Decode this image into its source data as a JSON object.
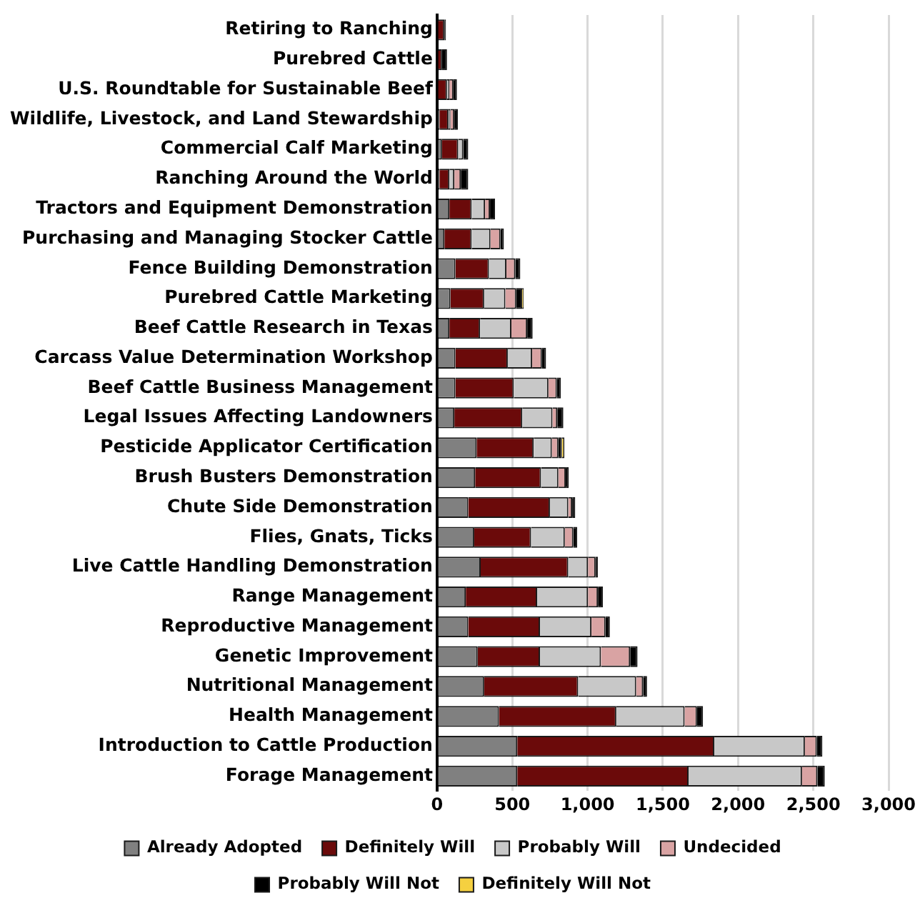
{
  "chart_data": {
    "type": "bar",
    "orientation": "horizontal",
    "stacked": true,
    "categories": [
      "Retiring to Ranching",
      "Purebred Cattle",
      "U.S. Roundtable for Sustainable Beef",
      "Wildlife, Livestock, and Land Stewardship",
      "Commercial Calf Marketing",
      "Ranching Around the World",
      "Tractors and Equipment Demonstration",
      "Purchasing and Managing Stocker Cattle",
      "Fence Building Demonstration",
      "Purebred Cattle Marketing",
      "Beef Cattle Research in Texas",
      "Carcass Value Determination Workshop",
      "Beef Cattle Business Management",
      "Legal Issues Affecting Landowners",
      "Pesticide Applicator Certification",
      "Brush Busters Demonstration",
      "Chute Side Demonstration",
      "Flies, Gnats, Ticks",
      "Live Cattle Handling Demonstration",
      "Range Management",
      "Reproductive Management",
      "Genetic Improvement",
      "Nutritional Management",
      "Health Management",
      "Introduction to Cattle Production",
      "Forage Management"
    ],
    "series": [
      {
        "name": "Already Adopted",
        "color": "#808080",
        "values": [
          0,
          0,
          0,
          16,
          33,
          16,
          82,
          49,
          122,
          89,
          82,
          122,
          122,
          115,
          263,
          253,
          207,
          247,
          290,
          191,
          207,
          270,
          313,
          411,
          533,
          533
        ]
      },
      {
        "name": "Definitely Will",
        "color": "#6b0a0a",
        "values": [
          49,
          33,
          66,
          60,
          108,
          66,
          148,
          181,
          223,
          224,
          204,
          348,
          388,
          451,
          379,
          438,
          543,
          378,
          582,
          474,
          477,
          414,
          625,
          780,
          1309,
          1138
        ]
      },
      {
        "name": "Probably Will",
        "color": "#c8c8c8",
        "values": [
          0,
          0,
          16,
          13,
          33,
          33,
          89,
          125,
          116,
          141,
          208,
          162,
          230,
          201,
          121,
          115,
          122,
          224,
          131,
          338,
          342,
          405,
          385,
          454,
          602,
          754
        ]
      },
      {
        "name": "Undecided",
        "color": "#d9a3a3",
        "values": [
          0,
          0,
          27,
          26,
          0,
          43,
          33,
          66,
          59,
          72,
          105,
          65,
          56,
          32,
          43,
          49,
          26,
          56,
          50,
          66,
          93,
          194,
          46,
          82,
          79,
          102
        ]
      },
      {
        "name": "Probably Will Not",
        "color": "#000000",
        "values": [
          10,
          33,
          23,
          23,
          33,
          49,
          33,
          23,
          33,
          40,
          36,
          27,
          27,
          40,
          23,
          20,
          20,
          26,
          16,
          33,
          29,
          49,
          26,
          40,
          37,
          49
        ]
      },
      {
        "name": "Definitely Will Not",
        "color": "#f5d040",
        "values": [
          0,
          0,
          0,
          0,
          0,
          0,
          0,
          0,
          0,
          10,
          0,
          0,
          0,
          0,
          17,
          0,
          0,
          0,
          0,
          0,
          0,
          0,
          0,
          0,
          0,
          0
        ]
      }
    ],
    "xlim": [
      0,
      3000
    ],
    "xticks": [
      {
        "value": 0,
        "label": "0"
      },
      {
        "value": 500,
        "label": "500"
      },
      {
        "value": 1000,
        "label": "1,000"
      },
      {
        "value": 1500,
        "label": "1,500"
      },
      {
        "value": 2000,
        "label": "2,000"
      },
      {
        "value": 2500,
        "label": "2,500"
      },
      {
        "value": 3000,
        "label": "3,000"
      }
    ],
    "grid": "x",
    "legend": "bottom"
  }
}
